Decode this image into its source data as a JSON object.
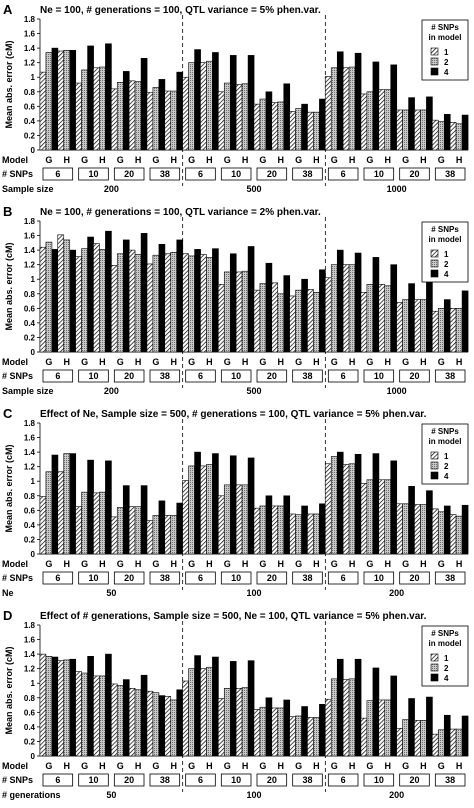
{
  "chart_data": [
    {
      "type": "bar",
      "panel_label": "A",
      "title": "Ne = 100, # generations = 100, QTL variance = 5% phen.var.",
      "ylabel": "Mean abs. error (cM)",
      "ylim": [
        0,
        1.8
      ],
      "yticks": [
        "0",
        "0.2",
        "0.4",
        "0.6",
        "0.8",
        "1",
        "1.2",
        "1.4",
        "1.6",
        "1.8"
      ],
      "row_labels": [
        "Model",
        "# SNPs",
        "Sample size"
      ],
      "model_labels": [
        "G",
        "H"
      ],
      "snp_labels": [
        "6",
        "10",
        "20",
        "38"
      ],
      "group_labels": [
        "200",
        "500",
        "1000"
      ],
      "legend": {
        "title": "# SNPs in model",
        "entries": [
          "1",
          "2",
          "4"
        ]
      },
      "values": [
        [
          [
            1.07,
            1.34,
            1.4
          ],
          [
            1.36,
            1.37,
            1.37
          ],
          [
            0.92,
            1.1,
            1.43
          ],
          [
            1.13,
            1.14,
            1.46
          ],
          [
            0.84,
            0.93,
            1.08
          ],
          [
            0.95,
            0.94,
            1.26
          ],
          [
            0.79,
            0.86,
            0.97
          ],
          [
            0.81,
            0.81,
            1.07
          ]
        ],
        [
          [
            1.0,
            1.2,
            1.38
          ],
          [
            1.2,
            1.22,
            1.34
          ],
          [
            0.8,
            0.92,
            1.3
          ],
          [
            0.9,
            0.91,
            1.3
          ],
          [
            0.63,
            0.7,
            0.8
          ],
          [
            0.65,
            0.66,
            0.91
          ],
          [
            0.53,
            0.57,
            0.63
          ],
          [
            0.52,
            0.52,
            0.7
          ]
        ],
        [
          [
            1.01,
            1.13,
            1.35
          ],
          [
            1.13,
            1.14,
            1.33
          ],
          [
            0.77,
            0.8,
            1.21
          ],
          [
            0.83,
            0.83,
            1.17
          ],
          [
            0.55,
            0.55,
            0.72
          ],
          [
            0.55,
            0.55,
            0.73
          ],
          [
            0.41,
            0.39,
            0.49
          ],
          [
            0.38,
            0.36,
            0.48
          ]
        ]
      ]
    },
    {
      "type": "bar",
      "panel_label": "B",
      "title": "Ne = 100, # generations = 100, QTL variance = 2% phen.var.",
      "ylabel": "Mean abs. error (cM)",
      "ylim": [
        0,
        1.8
      ],
      "yticks": [
        "0",
        "0.2",
        "0.4",
        "0.6",
        "0.8",
        "1",
        "1.2",
        "1.4",
        "1.6",
        "1.8"
      ],
      "row_labels": [
        "Model",
        "# SNPs",
        "Sample size"
      ],
      "model_labels": [
        "G",
        "H"
      ],
      "snp_labels": [
        "6",
        "10",
        "20",
        "38"
      ],
      "group_labels": [
        "200",
        "500",
        "1000"
      ],
      "legend": {
        "title": "# SNPs in model",
        "entries": [
          "1",
          "2",
          "4"
        ]
      },
      "values": [
        [
          [
            1.44,
            1.51,
            1.41
          ],
          [
            1.61,
            1.54,
            1.4
          ],
          [
            1.31,
            1.42,
            1.58
          ],
          [
            1.49,
            1.41,
            1.66
          ],
          [
            1.19,
            1.35,
            1.54
          ],
          [
            1.4,
            1.34,
            1.63
          ],
          [
            1.21,
            1.33,
            1.48
          ],
          [
            1.35,
            1.37,
            1.54
          ]
        ],
        [
          [
            1.35,
            1.32,
            1.41
          ],
          [
            1.34,
            1.3,
            1.42
          ],
          [
            0.93,
            1.1,
            1.35
          ],
          [
            1.1,
            1.11,
            1.45
          ],
          [
            0.85,
            0.94,
            1.22
          ],
          [
            0.95,
            0.8,
            1.05
          ],
          [
            0.77,
            0.85,
            1.0
          ],
          [
            0.86,
            0.82,
            1.13
          ]
        ],
        [
          [
            1.02,
            1.2,
            1.4
          ],
          [
            1.2,
            1.2,
            1.36
          ],
          [
            0.82,
            0.93,
            1.3
          ],
          [
            0.93,
            0.91,
            1.2
          ],
          [
            0.68,
            0.72,
            0.94
          ],
          [
            0.72,
            0.72,
            1.02
          ],
          [
            0.56,
            0.6,
            0.72
          ],
          [
            0.6,
            0.6,
            0.84
          ]
        ]
      ]
    },
    {
      "type": "bar",
      "panel_label": "C",
      "title": "Effect of Ne, Sample size = 500, # generations = 100, QTL variance = 5% phen.var.",
      "ylabel": "Mean abs. error (cM)",
      "ylim": [
        0,
        1.8
      ],
      "yticks": [
        "0",
        "0.2",
        "0.4",
        "0.6",
        "0.8",
        "1",
        "1.2",
        "1.4",
        "1.6",
        "1.8"
      ],
      "row_labels": [
        "Model",
        "# SNPs",
        "Ne"
      ],
      "model_labels": [
        "G",
        "H"
      ],
      "snp_labels": [
        "6",
        "10",
        "20",
        "38"
      ],
      "group_labels": [
        "50",
        "100",
        "200"
      ],
      "legend": {
        "title": "# SNPs in model",
        "entries": [
          "1",
          "2",
          "4"
        ]
      },
      "values": [
        [
          [
            0.79,
            1.13,
            1.36
          ],
          [
            1.13,
            1.38,
            1.38
          ],
          [
            0.65,
            0.85,
            1.29
          ],
          [
            0.84,
            0.85,
            1.28
          ],
          [
            0.51,
            0.64,
            0.94
          ],
          [
            0.65,
            0.65,
            0.94
          ],
          [
            0.46,
            0.53,
            0.73
          ],
          [
            0.53,
            0.53,
            0.7
          ]
        ],
        [
          [
            1.01,
            1.21,
            1.4
          ],
          [
            1.21,
            1.23,
            1.38
          ],
          [
            0.8,
            0.95,
            1.35
          ],
          [
            0.95,
            0.95,
            1.32
          ],
          [
            0.63,
            0.66,
            0.8
          ],
          [
            0.66,
            0.66,
            0.8
          ],
          [
            0.55,
            0.54,
            0.66
          ],
          [
            0.55,
            0.55,
            0.69
          ]
        ],
        [
          [
            1.24,
            1.34,
            1.4
          ],
          [
            1.23,
            1.24,
            1.37
          ],
          [
            0.97,
            1.02,
            1.38
          ],
          [
            1.02,
            1.02,
            1.28
          ],
          [
            0.69,
            0.69,
            0.93
          ],
          [
            0.68,
            0.68,
            0.87
          ],
          [
            0.62,
            0.58,
            0.66
          ],
          [
            0.54,
            0.52,
            0.67
          ]
        ]
      ]
    },
    {
      "type": "bar",
      "panel_label": "D",
      "title": "Effect of # generations, Sample size = 500, Ne = 100, QTL variance = 5% phen.var.",
      "ylabel": "Mean abs. error (cM)",
      "ylim": [
        0,
        1.8
      ],
      "yticks": [
        "0",
        "0.2",
        "0.4",
        "0.6",
        "0.8",
        "1",
        "1.2",
        "1.4",
        "1.6",
        "1.8"
      ],
      "row_labels": [
        "Model",
        "# SNPs",
        "# generations"
      ],
      "model_labels": [
        "G",
        "H"
      ],
      "snp_labels": [
        "6",
        "10",
        "20",
        "38"
      ],
      "group_labels": [
        "50",
        "100",
        "200"
      ],
      "legend": {
        "title": "# SNPs in model",
        "entries": [
          "1",
          "2",
          "4"
        ]
      },
      "values": [
        [
          [
            1.4,
            1.37,
            1.36
          ],
          [
            1.31,
            1.32,
            1.33
          ],
          [
            1.16,
            1.14,
            1.37
          ],
          [
            1.1,
            1.1,
            1.4
          ],
          [
            0.99,
            0.97,
            1.05
          ],
          [
            0.93,
            0.91,
            1.11
          ],
          [
            0.89,
            0.87,
            0.83
          ],
          [
            0.82,
            0.77,
            0.91
          ]
        ],
        [
          [
            1.03,
            1.2,
            1.38
          ],
          [
            1.2,
            1.22,
            1.36
          ],
          [
            0.79,
            0.93,
            1.3
          ],
          [
            0.93,
            0.94,
            1.31
          ],
          [
            0.64,
            0.67,
            0.8
          ],
          [
            0.66,
            0.66,
            0.77
          ],
          [
            0.54,
            0.55,
            0.68
          ],
          [
            0.53,
            0.53,
            0.71
          ]
        ],
        [
          [
            0.78,
            1.06,
            1.33
          ],
          [
            1.05,
            1.06,
            1.33
          ],
          [
            0.52,
            0.76,
            1.21
          ],
          [
            0.77,
            0.77,
            1.1
          ],
          [
            0.38,
            0.5,
            0.79
          ],
          [
            0.49,
            0.49,
            0.81
          ],
          [
            0.3,
            0.36,
            0.56
          ],
          [
            0.37,
            0.37,
            0.55
          ]
        ]
      ]
    }
  ]
}
